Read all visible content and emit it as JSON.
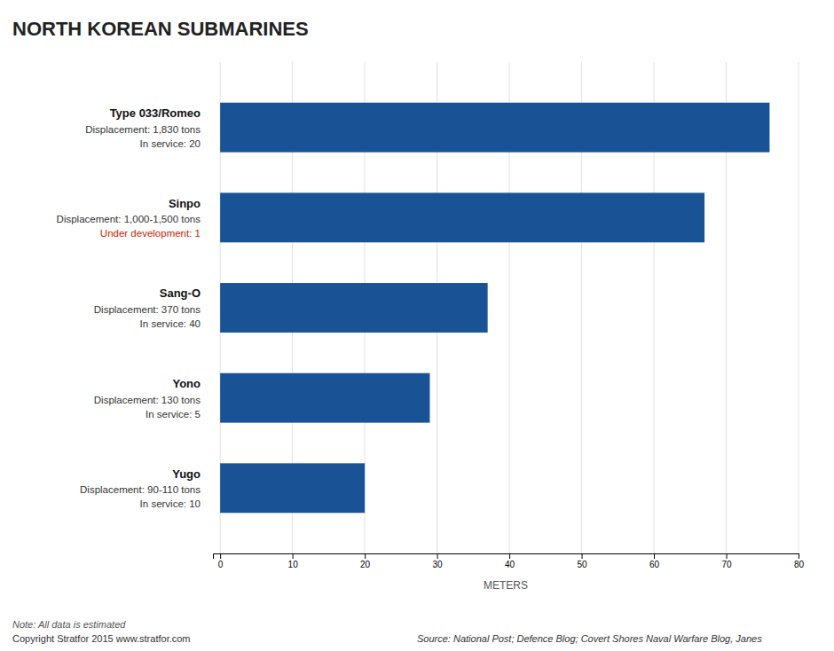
{
  "chart_data": {
    "type": "bar",
    "orientation": "horizontal",
    "title": "NORTH KOREAN SUBMARINES",
    "categories": [
      "Type 033/Romeo",
      "Sinpo",
      "Sang-O",
      "Yono",
      "Yugo"
    ],
    "values": [
      76,
      67,
      37,
      29,
      20
    ],
    "color": "#1a5296",
    "annotations": [
      [
        {
          "text": "Displacement: 1,830 tons"
        },
        {
          "text": "In service: 20"
        }
      ],
      [
        {
          "text": "Displacement: 1,000-1,500 tons"
        },
        {
          "text": "Under development: 1",
          "color": "#cc2200"
        }
      ],
      [
        {
          "text": "Displacement: 370 tons"
        },
        {
          "text": "In service: 40"
        }
      ],
      [
        {
          "text": "Displacement: 130 tons"
        },
        {
          "text": "In service: 5"
        }
      ],
      [
        {
          "text": "Displacement: 90-110 tons"
        },
        {
          "text": "In service: 10"
        }
      ]
    ],
    "footnotes": [
      "Note: All data is estimated",
      "Copyright Stratfor 2015    www.stratfor.com",
      "Source: National Post; Defence Blog; Covert Shores Naval Warfare Blog, Janes"
    ],
    "xlabel": "METERS",
    "xlim": [
      -1,
      80
    ],
    "xticks": [
      0,
      10,
      20,
      30,
      40,
      50,
      60,
      70,
      80
    ],
    "grid": true,
    "tick_labels": "x"
  }
}
